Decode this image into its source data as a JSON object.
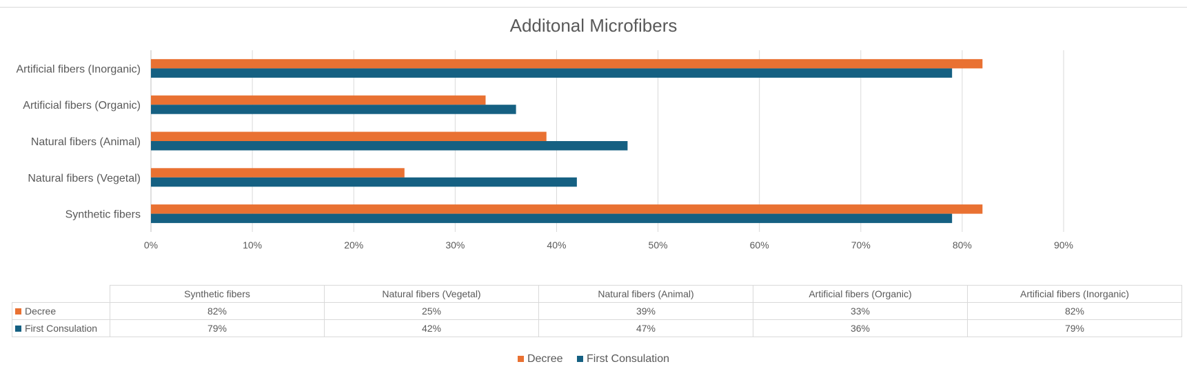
{
  "chart_data": {
    "type": "bar",
    "orientation": "horizontal",
    "title": "Additonal Microfibers",
    "categories": [
      "Synthetic fibers",
      "Natural fibers (Vegetal)",
      "Natural fibers (Animal)",
      "Artificial fibers (Organic)",
      "Artificial fibers (Inorganic)"
    ],
    "series": [
      {
        "name": "Decree",
        "values": [
          82,
          25,
          39,
          33,
          82
        ],
        "color": "#e97132"
      },
      {
        "name": "First Consulation",
        "values": [
          79,
          42,
          47,
          36,
          79
        ],
        "color": "#156082"
      }
    ],
    "xlim": [
      0,
      90
    ],
    "x_ticks": [
      "0%",
      "10%",
      "20%",
      "30%",
      "40%",
      "50%",
      "60%",
      "70%",
      "80%",
      "90%"
    ],
    "grid": true,
    "legend_position": "bottom",
    "data_table": {
      "rows": [
        {
          "label": "Decree",
          "cells": [
            "82%",
            "25%",
            "39%",
            "33%",
            "82%"
          ]
        },
        {
          "label": "First Consulation",
          "cells": [
            "79%",
            "42%",
            "47%",
            "36%",
            "79%"
          ]
        }
      ]
    }
  }
}
